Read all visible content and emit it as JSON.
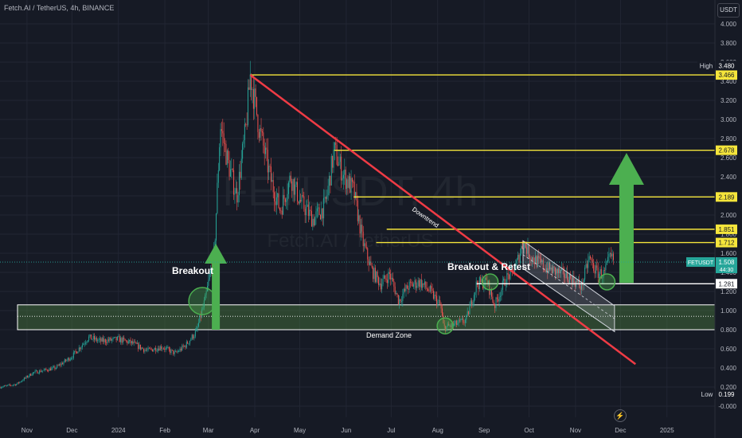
{
  "header": {
    "symbol_line": "Fetch.AI / TetherUS, 4h, BINANCE"
  },
  "currency_button": "USDT",
  "watermark": {
    "big": "FETUSDT, 4h",
    "small": "Fetch.AI / TetherUS"
  },
  "colors": {
    "background": "#161a25",
    "grid": "#222633",
    "bull": "#26a69a",
    "bear": "#ef5350",
    "level_line": "#f5e53b",
    "trend_line": "#ef3b45",
    "arrow": "#4caf50",
    "zone": "#4a7a3e"
  },
  "chart_data": {
    "type": "candlestick",
    "title": "Fetch.AI / TetherUS, 4h, BINANCE",
    "y_axis": {
      "ticks": [
        "4.000",
        "3.800",
        "3.600",
        "3.400",
        "3.200",
        "3.000",
        "2.800",
        "2.600",
        "2.400",
        "2.200",
        "2.000",
        "1.800",
        "1.600",
        "1.400",
        "1.200",
        "1.000",
        "0.800",
        "0.600",
        "0.400",
        "0.200",
        "-0.000"
      ],
      "range": [
        -0.02,
        4.0
      ]
    },
    "x_axis": {
      "ticks": [
        "Nov",
        "Dec",
        "2024",
        "Feb",
        "Mar",
        "Apr",
        "May",
        "Jun",
        "Jul",
        "Aug",
        "Sep",
        "Oct",
        "Nov",
        "Dec",
        "2025"
      ],
      "tick_dates": [
        "2023-11-01",
        "2023-12-01",
        "2024-01-01",
        "2024-02-01",
        "2024-03-01",
        "2024-04-01",
        "2024-05-01",
        "2024-06-01",
        "2024-07-01",
        "2024-08-01",
        "2024-09-01",
        "2024-10-01",
        "2024-11-01",
        "2024-12-01",
        "2025-01-01"
      ],
      "range": [
        "2023-10-14",
        "2025-02-02"
      ]
    },
    "price_path": [
      [
        "2023-10-14",
        0.2
      ],
      [
        "2023-10-25",
        0.23
      ],
      [
        "2023-11-05",
        0.35
      ],
      [
        "2023-11-20",
        0.4
      ],
      [
        "2023-12-01",
        0.52
      ],
      [
        "2023-12-12",
        0.72
      ],
      [
        "2023-12-20",
        0.68
      ],
      [
        "2024-01-01",
        0.7
      ],
      [
        "2024-01-10",
        0.66
      ],
      [
        "2024-01-20",
        0.58
      ],
      [
        "2024-01-30",
        0.62
      ],
      [
        "2024-02-08",
        0.55
      ],
      [
        "2024-02-15",
        0.64
      ],
      [
        "2024-02-22",
        0.78
      ],
      [
        "2024-02-28",
        1.12
      ],
      [
        "2024-03-05",
        1.62
      ],
      [
        "2024-03-09",
        2.95
      ],
      [
        "2024-03-14",
        2.55
      ],
      [
        "2024-03-20",
        2.2
      ],
      [
        "2024-03-26",
        2.9
      ],
      [
        "2024-03-29",
        3.47
      ],
      [
        "2024-04-04",
        2.9
      ],
      [
        "2024-04-12",
        2.35
      ],
      [
        "2024-04-18",
        2.05
      ],
      [
        "2024-04-25",
        2.4
      ],
      [
        "2024-05-01",
        2.15
      ],
      [
        "2024-05-10",
        1.95
      ],
      [
        "2024-05-18",
        2.1
      ],
      [
        "2024-05-24",
        2.68
      ],
      [
        "2024-05-30",
        2.42
      ],
      [
        "2024-06-06",
        2.25
      ],
      [
        "2024-06-12",
        1.72
      ],
      [
        "2024-06-18",
        1.42
      ],
      [
        "2024-06-24",
        1.28
      ],
      [
        "2024-06-30",
        1.38
      ],
      [
        "2024-07-06",
        1.1
      ],
      [
        "2024-07-12",
        1.25
      ],
      [
        "2024-07-20",
        1.3
      ],
      [
        "2024-07-27",
        1.2
      ],
      [
        "2024-08-03",
        1.05
      ],
      [
        "2024-08-05",
        0.82
      ],
      [
        "2024-08-12",
        0.85
      ],
      [
        "2024-08-20",
        0.9
      ],
      [
        "2024-08-27",
        1.28
      ],
      [
        "2024-09-03",
        1.3
      ],
      [
        "2024-09-08",
        1.05
      ],
      [
        "2024-09-15",
        1.32
      ],
      [
        "2024-09-22",
        1.45
      ],
      [
        "2024-09-27",
        1.72
      ],
      [
        "2024-10-03",
        1.55
      ],
      [
        "2024-10-12",
        1.45
      ],
      [
        "2024-10-20",
        1.4
      ],
      [
        "2024-10-28",
        1.35
      ],
      [
        "2024-11-05",
        1.25
      ],
      [
        "2024-11-10",
        1.55
      ],
      [
        "2024-11-15",
        1.4
      ],
      [
        "2024-11-20",
        1.38
      ],
      [
        "2024-11-24",
        1.55
      ],
      [
        "2024-11-27",
        1.52
      ]
    ],
    "horizontal_levels": [
      {
        "value": 3.466,
        "start": "2024-03-29"
      },
      {
        "value": 2.678,
        "start": "2024-05-24"
      },
      {
        "value": 2.189,
        "start": "2024-06-06"
      },
      {
        "value": 1.851,
        "start": "2024-06-28"
      },
      {
        "value": 1.712,
        "start": "2024-06-21"
      },
      {
        "value": 1.281,
        "start": "2024-08-27"
      }
    ],
    "price_labels": {
      "high_label": "High",
      "high_value": "3.480",
      "levels": [
        "3.466",
        "2.678",
        "2.189",
        "1.851",
        "1.712",
        "1.281"
      ],
      "low_label": "Low",
      "low_value": "0.199",
      "current_symbol": "FETUSDT",
      "current_price": "1.508",
      "countdown": "44:30",
      "current_value": 1.508
    },
    "trendline": {
      "from": [
        "2024-03-29",
        3.466
      ],
      "to": [
        "2024-12-11",
        0.44
      ]
    },
    "demand_zone": {
      "top": 1.06,
      "mid": 0.94,
      "bottom": 0.8,
      "label": "Demand Zone"
    },
    "descending_channel": {
      "upper": [
        [
          "2024-09-27",
          1.73
        ],
        [
          "2024-11-27",
          1.05
        ]
      ],
      "lower": [
        [
          "2024-09-27",
          1.44
        ],
        [
          "2024-11-27",
          0.78
        ]
      ]
    },
    "annotations": {
      "breakout": "Breakout",
      "breakout_retest": "Breakout & Retest",
      "downtrend": "Downtrend"
    },
    "circles": [
      {
        "date": "2024-02-26",
        "value": 1.1
      },
      {
        "date": "2024-09-05",
        "value": 1.3
      },
      {
        "date": "2024-08-06",
        "value": 0.84
      },
      {
        "date": "2024-11-22",
        "value": 1.3
      }
    ],
    "arrows": [
      {
        "date": "2024-03-06",
        "from": 0.8,
        "to": 1.7
      },
      {
        "date": "2024-12-05",
        "from": 1.29,
        "to": 2.65
      }
    ]
  }
}
